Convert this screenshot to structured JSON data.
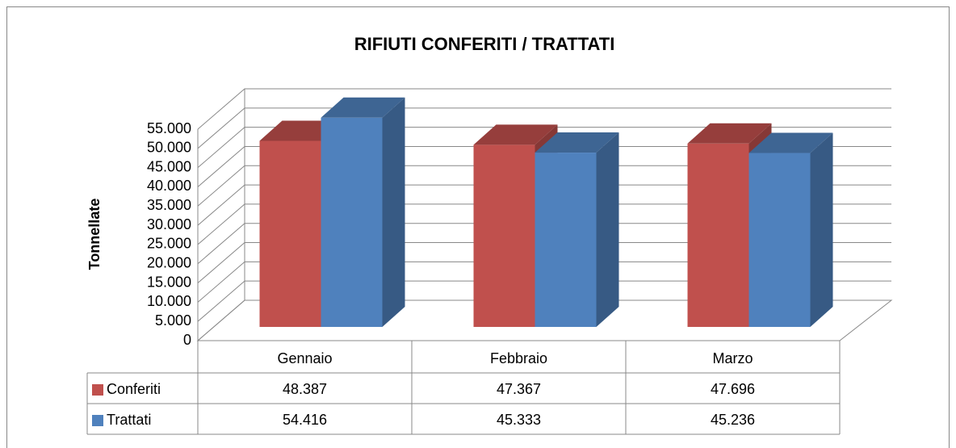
{
  "chart_data": {
    "type": "bar",
    "title": "RIFIUTI CONFERITI / TRATTATI",
    "ylabel": "Tonnellate",
    "categories": [
      "Gennaio",
      "Febbraio",
      "Marzo"
    ],
    "series": [
      {
        "name": "Conferiti",
        "color": "#c0504d",
        "values": [
          48387,
          47367,
          47696
        ],
        "value_labels": [
          "48.387",
          "47.367",
          "47.696"
        ]
      },
      {
        "name": "Trattati",
        "color": "#4f81bd",
        "values": [
          54416,
          45333,
          45236
        ],
        "value_labels": [
          "54.416",
          "45.333",
          "45.236"
        ]
      }
    ],
    "ylim": [
      0,
      55000
    ],
    "yticks": [
      0,
      {
        "value": 5000,
        "label": "5.000"
      },
      {
        "value": 10000,
        "label": "10.000"
      },
      {
        "value": 15000,
        "label": "15.000"
      },
      {
        "value": 20000,
        "label": "20.000"
      },
      {
        "value": 25000,
        "label": "25.000"
      },
      {
        "value": 30000,
        "label": "30.000"
      },
      {
        "value": 35000,
        "label": "35.000"
      },
      {
        "value": 40000,
        "label": "40.000"
      },
      {
        "value": 45000,
        "label": "45.000"
      },
      {
        "value": 50000,
        "label": "50.000"
      },
      {
        "value": 55000,
        "label": "55.000"
      }
    ],
    "grid": true,
    "data_table": true
  }
}
